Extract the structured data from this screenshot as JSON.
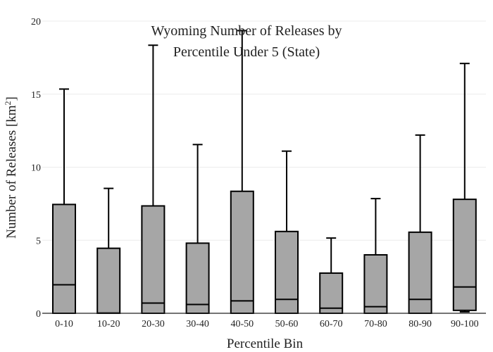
{
  "chart_data": {
    "type": "box",
    "title_lines": [
      "Wyoming Number of Releases by",
      "Percentile Under 5 (State)"
    ],
    "xlabel": "Percentile Bin",
    "ylabel_main": "Number of Releases  [km",
    "ylabel_sup": "2",
    "ylabel_close": "]",
    "ylim": [
      0,
      20
    ],
    "yticks": [
      0,
      5,
      10,
      15,
      20
    ],
    "grid": true,
    "box_color": "#a6a6a6",
    "categories": [
      "0-10",
      "10-20",
      "20-30",
      "30-40",
      "40-50",
      "50-60",
      "60-70",
      "70-80",
      "80-90",
      "90-100"
    ],
    "boxes": [
      {
        "min": 0.0,
        "q1": 0.0,
        "median": 1.95,
        "q3": 7.45,
        "max": 15.35
      },
      {
        "min": 0.0,
        "q1": 0.0,
        "median": 0.02,
        "q3": 4.45,
        "max": 8.55
      },
      {
        "min": 0.0,
        "q1": 0.0,
        "median": 0.7,
        "q3": 7.35,
        "max": 18.35
      },
      {
        "min": 0.0,
        "q1": 0.0,
        "median": 0.6,
        "q3": 4.8,
        "max": 11.55
      },
      {
        "min": 0.0,
        "q1": 0.0,
        "median": 0.85,
        "q3": 8.35,
        "max": 19.35
      },
      {
        "min": 0.0,
        "q1": 0.0,
        "median": 0.95,
        "q3": 5.6,
        "max": 11.1
      },
      {
        "min": 0.0,
        "q1": 0.0,
        "median": 0.35,
        "q3": 2.75,
        "max": 5.15
      },
      {
        "min": 0.0,
        "q1": 0.0,
        "median": 0.45,
        "q3": 4.0,
        "max": 7.85
      },
      {
        "min": 0.0,
        "q1": 0.0,
        "median": 0.95,
        "q3": 5.55,
        "max": 12.2
      },
      {
        "min": 0.1,
        "q1": 0.2,
        "median": 1.8,
        "q3": 7.8,
        "max": 17.1
      }
    ]
  }
}
